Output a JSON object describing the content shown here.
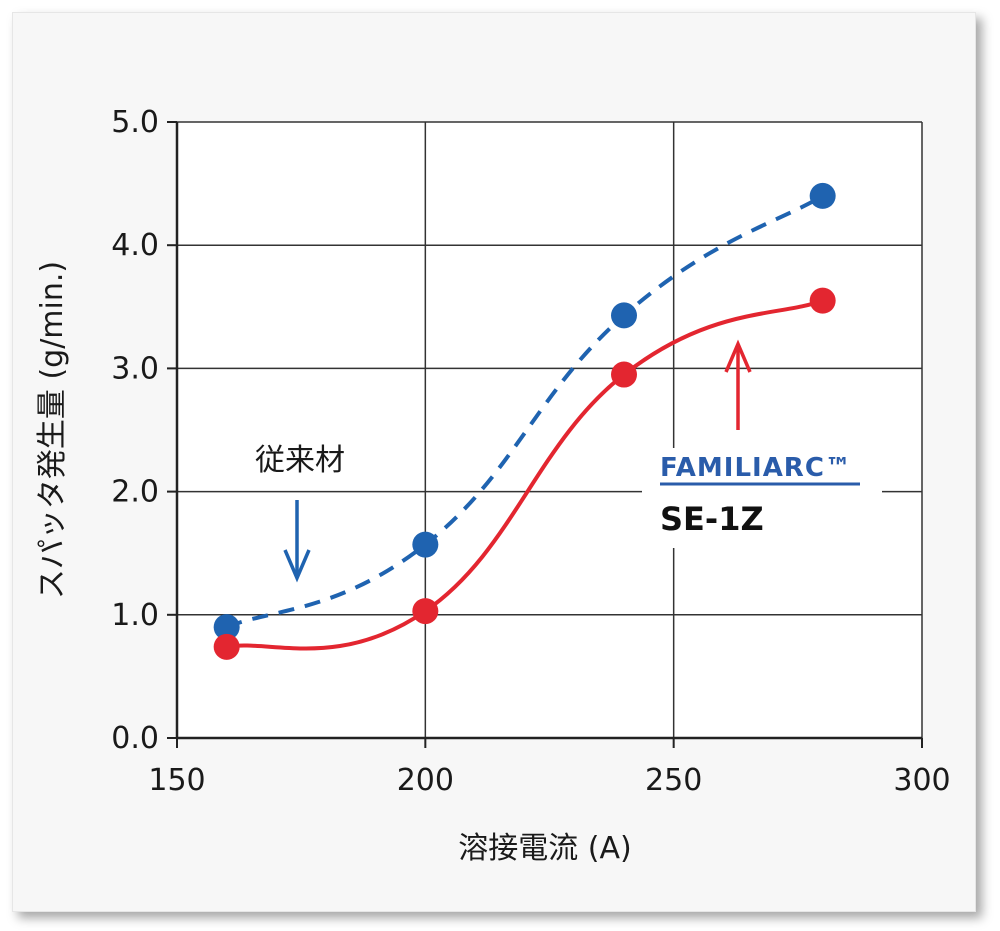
{
  "chart_data": {
    "type": "line",
    "xlabel": "溶接電流 (A)",
    "ylabel": "スパッタ発生量 (g/min.)",
    "xlim": [
      150,
      300
    ],
    "ylim": [
      0,
      5
    ],
    "x_ticks": [
      "150",
      "200",
      "250",
      "300"
    ],
    "y_ticks": [
      "0.0",
      "1.0",
      "2.0",
      "3.0",
      "4.0",
      "5.0"
    ],
    "grid": true,
    "series": [
      {
        "name": "従来材",
        "color": "#1f63b0",
        "line_style": "dashed",
        "x": [
          160,
          200,
          240,
          280
        ],
        "y": [
          0.9,
          1.57,
          3.43,
          4.4
        ]
      },
      {
        "name": "FAMILIARC SE-1Z",
        "color": "#e32630",
        "line_style": "solid",
        "x": [
          160,
          200,
          240,
          280
        ],
        "y": [
          0.74,
          1.03,
          2.95,
          3.55
        ]
      }
    ],
    "annotations": {
      "conventional_label": "従来材",
      "brand_label": "FAMILIARC™",
      "model_label": "SE-1Z"
    }
  }
}
